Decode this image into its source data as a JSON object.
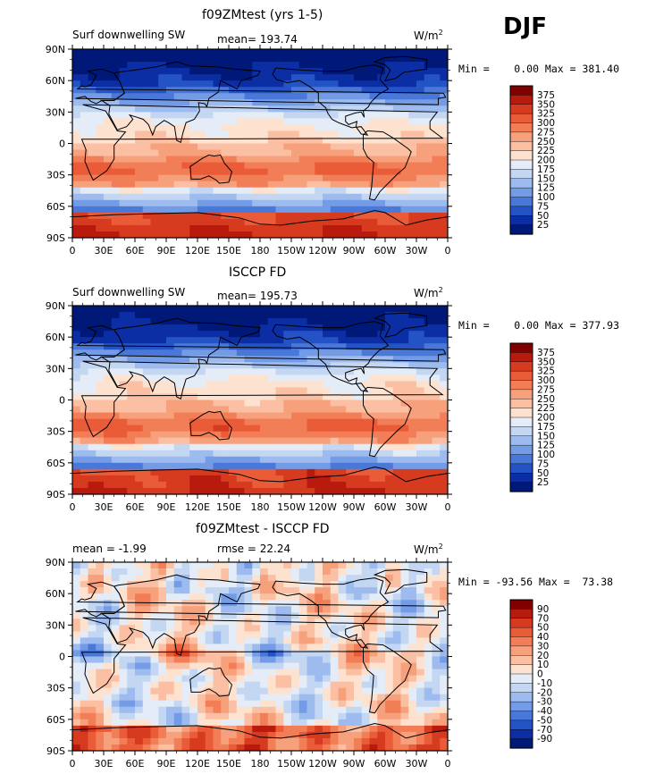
{
  "season": "DJF",
  "panels": [
    {
      "title": "f09ZMtest (yrs 1-5)",
      "left_label": "Surf downwelling SW",
      "center_label": "mean= 193.74",
      "units": "W/m",
      "units_sup": "2",
      "minmax": "Min =    0.00 Max = 381.40",
      "colorbar": {
        "labels": [
          "375",
          "350",
          "325",
          "300",
          "275",
          "250",
          "225",
          "200",
          "175",
          "150",
          "125",
          "100",
          "75",
          "50",
          "25"
        ],
        "colors": [
          "#800000",
          "#b81a0e",
          "#d73b1f",
          "#ea5b38",
          "#f27e58",
          "#f7a07c",
          "#fbc0a3",
          "#fde2d0",
          "#e4ecf7",
          "#c3d6f2",
          "#9dbbee",
          "#749ce6",
          "#4a78d8",
          "#2453c6",
          "#0c2ea5",
          "#001878"
        ]
      }
    },
    {
      "title": "ISCCP FD",
      "left_label": "Surf downwelling SW",
      "center_label": "mean= 195.73",
      "units": "W/m",
      "units_sup": "2",
      "minmax": "Min =    0.00 Max = 377.93",
      "colorbar": {
        "labels": [
          "375",
          "350",
          "325",
          "300",
          "275",
          "250",
          "225",
          "200",
          "175",
          "150",
          "125",
          "100",
          "75",
          "50",
          "25"
        ],
        "colors": [
          "#800000",
          "#b81a0e",
          "#d73b1f",
          "#ea5b38",
          "#f27e58",
          "#f7a07c",
          "#fbc0a3",
          "#fde2d0",
          "#e4ecf7",
          "#c3d6f2",
          "#9dbbee",
          "#749ce6",
          "#4a78d8",
          "#2453c6",
          "#0c2ea5",
          "#001878"
        ]
      }
    },
    {
      "title": "f09ZMtest - ISCCP FD",
      "left_label": "mean =   -1.99",
      "center_label": "rmse =  22.24",
      "units": "W/m",
      "units_sup": "2",
      "minmax": "Min = -93.56 Max =  73.38",
      "colorbar": {
        "labels": [
          "90",
          "70",
          "50",
          "40",
          "30",
          "20",
          "10",
          "0",
          "-10",
          "-20",
          "-30",
          "-40",
          "-50",
          "-70",
          "-90"
        ],
        "colors": [
          "#800000",
          "#b81a0e",
          "#d73b1f",
          "#ea5b38",
          "#f27e58",
          "#f7a07c",
          "#fbc0a3",
          "#fde2d0",
          "#e4ecf7",
          "#c3d6f2",
          "#9dbbee",
          "#749ce6",
          "#4a78d8",
          "#2453c6",
          "#0c2ea5",
          "#001878"
        ]
      }
    }
  ],
  "axes": {
    "lat_ticks": [
      "90N",
      "60N",
      "30N",
      "0",
      "30S",
      "60S",
      "90S"
    ],
    "lon_ticks": [
      "0",
      "30E",
      "60E",
      "90E",
      "120E",
      "150E",
      "180",
      "150W",
      "120W",
      "90W",
      "60W",
      "30W",
      "0"
    ]
  }
}
